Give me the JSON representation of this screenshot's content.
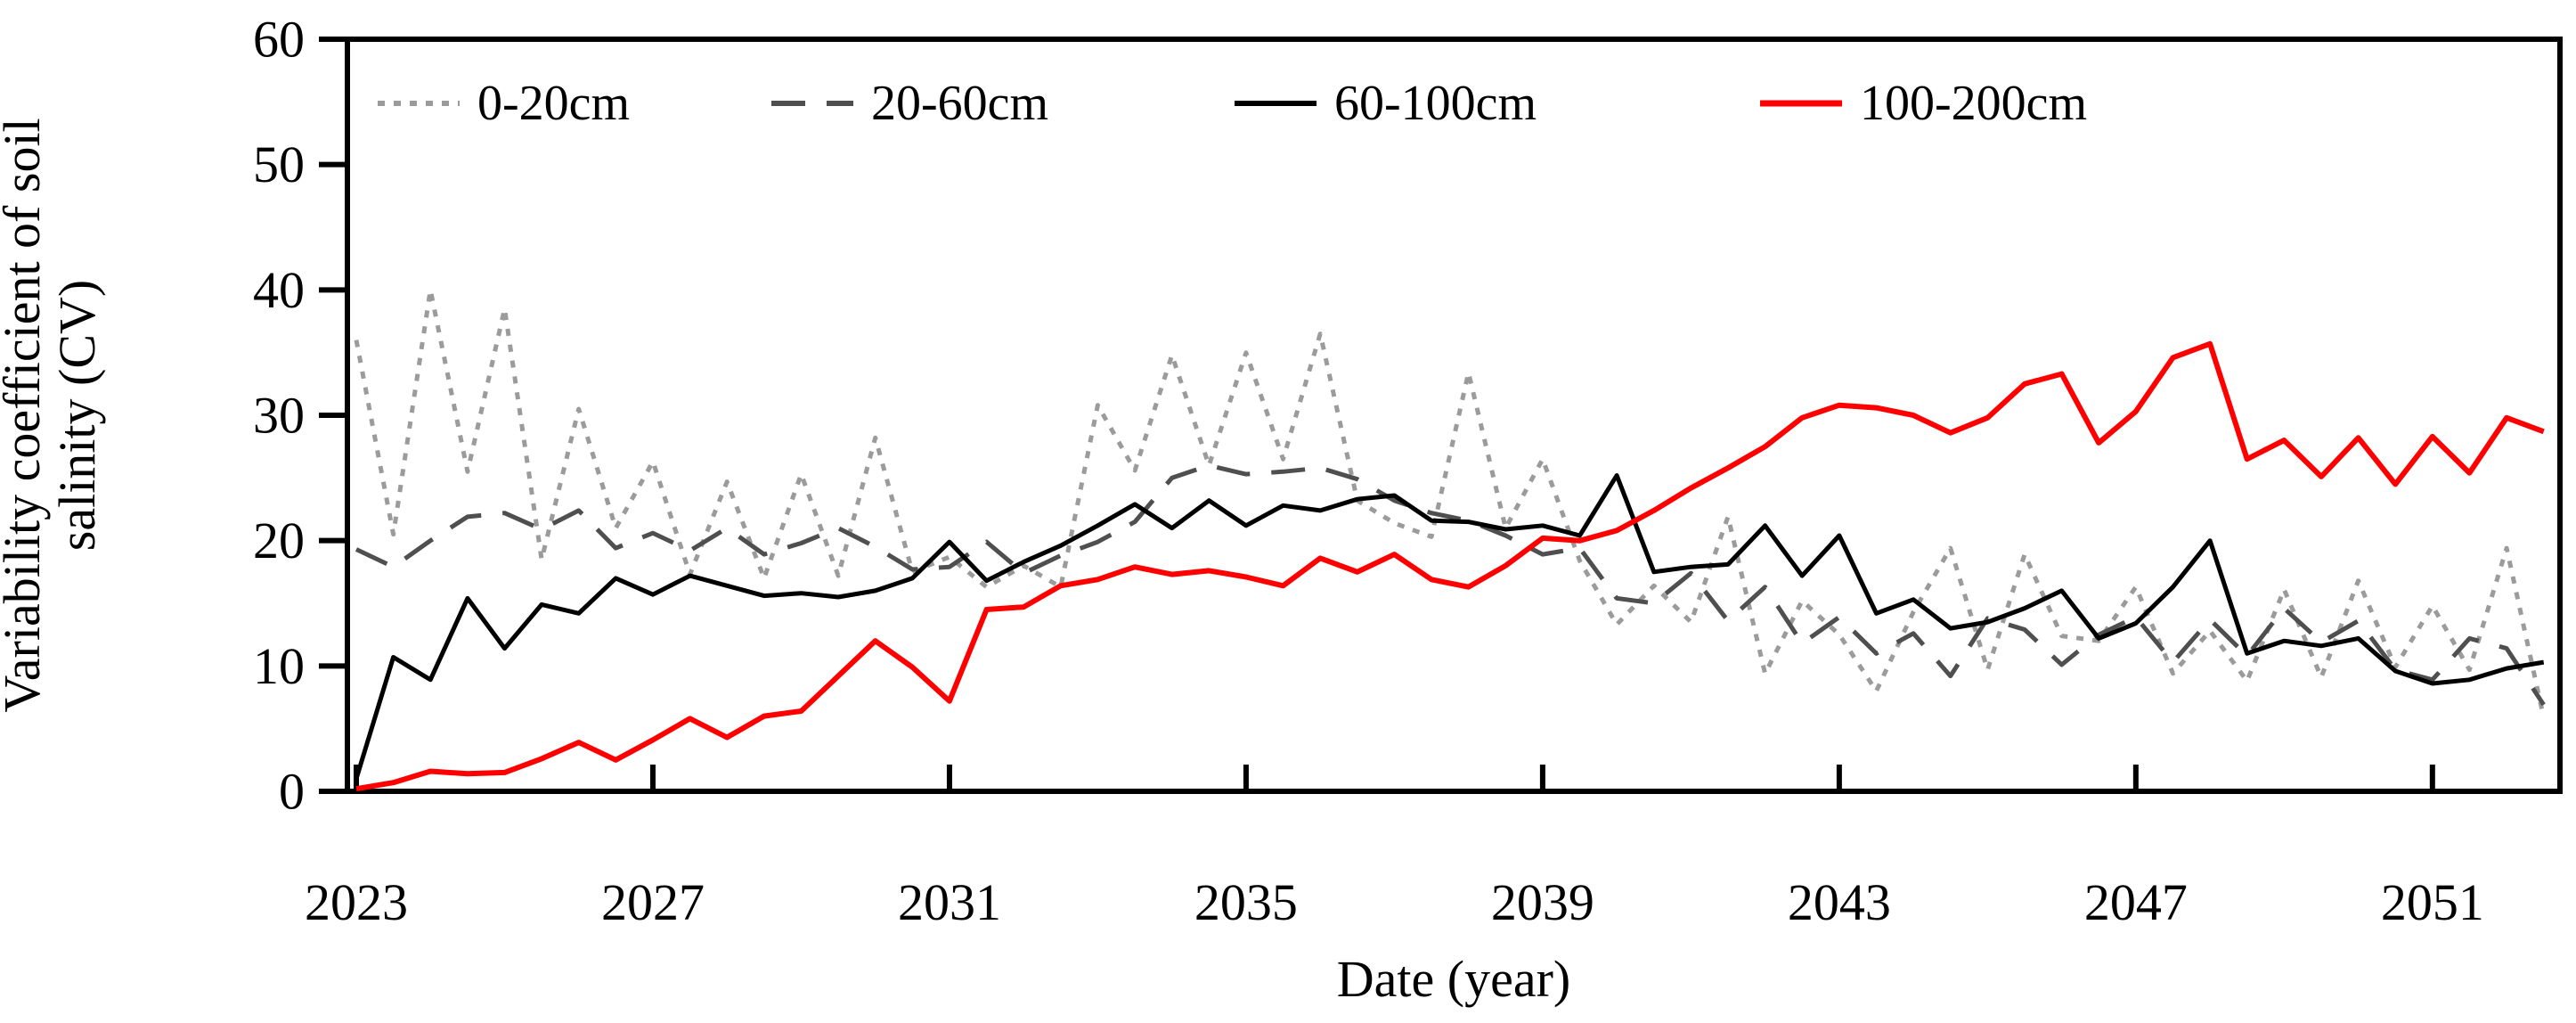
{
  "chart_data": {
    "type": "line",
    "title": "",
    "xlabel": "Date (year)",
    "ylabel": "Variability coefficient of soil salinity (CV)",
    "ylabel_lines": [
      "Variability coefficient of soil",
      "salinity (CV)"
    ],
    "xlim": [
      2022.88,
      2052.72
    ],
    "ylim": [
      0,
      60
    ],
    "yticks": [
      0,
      10,
      20,
      30,
      40,
      50,
      60
    ],
    "xticks": [
      2023,
      2027,
      2031,
      2035,
      2039,
      2043,
      2047,
      2051
    ],
    "grid": false,
    "legend_position": "top-inside",
    "frame": true,
    "axis_color": "#000000",
    "x": [
      2023.0,
      2023.5,
      2024.0,
      2024.5,
      2025.0,
      2025.5,
      2026.0,
      2026.5,
      2027.0,
      2027.5,
      2028.0,
      2028.5,
      2029.0,
      2029.5,
      2030.0,
      2030.5,
      2031.0,
      2031.5,
      2032.0,
      2032.5,
      2033.0,
      2033.5,
      2034.0,
      2034.5,
      2035.0,
      2035.5,
      2036.0,
      2036.5,
      2037.0,
      2037.5,
      2038.0,
      2038.5,
      2039.0,
      2039.5,
      2040.0,
      2040.5,
      2041.0,
      2041.5,
      2042.0,
      2042.5,
      2043.0,
      2043.5,
      2044.0,
      2044.5,
      2045.0,
      2045.5,
      2046.0,
      2046.5,
      2047.0,
      2047.5,
      2048.0,
      2048.5,
      2049.0,
      2049.5,
      2050.0,
      2050.5,
      2051.0,
      2051.5,
      2052.0,
      2052.5
    ],
    "series": [
      {
        "name": "0-20cm",
        "color": "#9b9b9b",
        "line_style": "dotted",
        "stroke_width": 5,
        "dash": "8 10",
        "values": [
          36.0,
          20.5,
          40.0,
          25.5,
          38.5,
          18.5,
          30.5,
          21.0,
          26.3,
          17.3,
          24.7,
          17.0,
          25.3,
          17.2,
          28.2,
          17.5,
          18.7,
          16.3,
          18.0,
          16.3,
          30.8,
          25.6,
          34.8,
          26.0,
          35.0,
          26.5,
          36.5,
          23.2,
          21.4,
          20.3,
          33.4,
          21.0,
          26.5,
          18.4,
          13.3,
          16.4,
          13.5,
          21.9,
          9.4,
          15.2,
          12.5,
          8.0,
          14.3,
          19.4,
          9.7,
          18.9,
          12.4,
          12.0,
          16.3,
          9.4,
          12.8,
          8.8,
          16.1,
          9.1,
          16.8,
          9.9,
          14.8,
          9.7,
          19.4,
          5.9
        ]
      },
      {
        "name": "20-60cm",
        "color": "#4f4f4f",
        "line_style": "dashed",
        "stroke_width": 5,
        "dash": "38 24",
        "values": [
          19.3,
          17.9,
          20.0,
          21.9,
          22.2,
          20.9,
          22.4,
          19.4,
          20.6,
          19.2,
          21.0,
          18.9,
          19.8,
          21.0,
          19.5,
          17.7,
          17.9,
          19.9,
          17.4,
          18.8,
          19.9,
          21.5,
          25.0,
          26.0,
          25.3,
          25.5,
          25.8,
          24.9,
          23.2,
          22.2,
          21.6,
          20.4,
          18.9,
          19.4,
          15.4,
          15.0,
          17.4,
          13.6,
          16.3,
          11.8,
          13.9,
          11.0,
          12.6,
          9.2,
          13.8,
          12.9,
          10.1,
          12.5,
          13.9,
          10.3,
          13.7,
          10.8,
          14.6,
          11.9,
          13.6,
          9.7,
          8.9,
          12.2,
          11.4,
          6.9
        ]
      },
      {
        "name": "60-100cm",
        "color": "#000000",
        "line_style": "solid",
        "stroke_width": 5,
        "dash": "",
        "values": [
          1.0,
          10.7,
          8.9,
          15.4,
          11.4,
          14.9,
          14.2,
          17.0,
          15.7,
          17.2,
          16.4,
          15.6,
          15.8,
          15.5,
          16.0,
          17.0,
          19.9,
          16.8,
          18.3,
          19.6,
          21.2,
          22.9,
          21.0,
          23.2,
          21.2,
          22.8,
          22.4,
          23.3,
          23.6,
          21.6,
          21.5,
          20.9,
          21.2,
          20.4,
          25.2,
          17.5,
          17.9,
          18.1,
          21.2,
          17.2,
          20.4,
          14.2,
          15.3,
          13.0,
          13.5,
          14.6,
          16.0,
          12.2,
          13.4,
          16.3,
          20.0,
          11.0,
          12.0,
          11.6,
          12.2,
          9.6,
          8.6,
          8.9,
          9.8,
          10.3
        ]
      },
      {
        "name": "100-200cm",
        "color": "#fe0000",
        "line_style": "solid",
        "stroke_width": 6,
        "dash": "",
        "values": [
          0.2,
          0.7,
          1.6,
          1.4,
          1.5,
          2.6,
          3.9,
          2.5,
          4.1,
          5.8,
          4.3,
          6.0,
          6.4,
          9.2,
          12.0,
          9.9,
          7.2,
          14.5,
          14.7,
          16.4,
          16.9,
          17.9,
          17.3,
          17.6,
          17.1,
          16.4,
          18.6,
          17.5,
          18.9,
          16.9,
          16.3,
          18.0,
          20.2,
          20.0,
          20.8,
          22.4,
          24.2,
          25.8,
          27.5,
          29.8,
          30.8,
          30.6,
          30.0,
          28.6,
          29.8,
          32.5,
          33.3,
          27.8,
          30.3,
          34.6,
          35.7,
          26.5,
          28.0,
          25.1,
          28.2,
          24.5,
          28.3,
          25.4,
          29.8,
          28.7
        ]
      }
    ]
  }
}
